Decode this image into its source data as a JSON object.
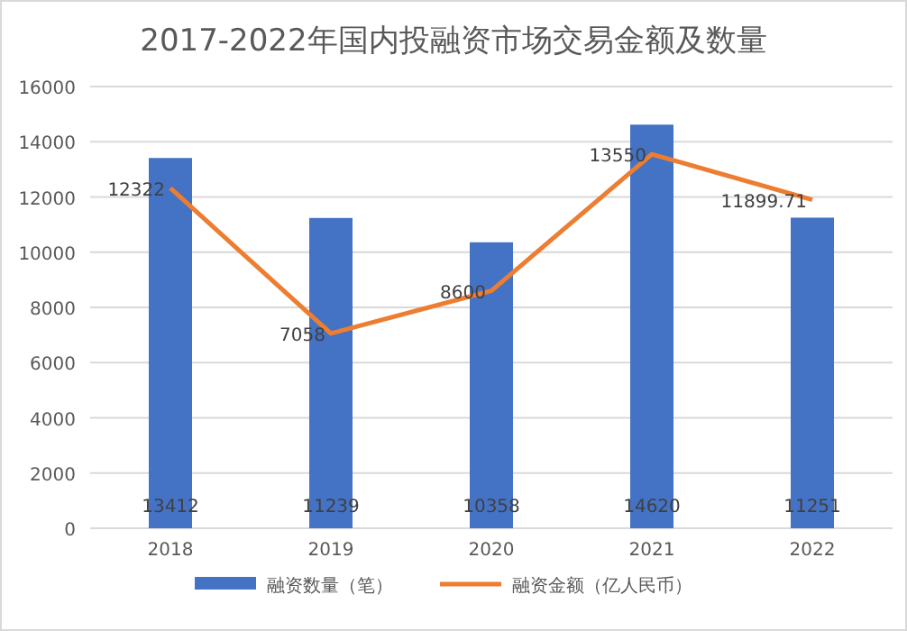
{
  "chart_data": {
    "type": "bar",
    "title": "2017-2022年国内投融资市场交易金额及数量",
    "categories": [
      "2018",
      "2019",
      "2020",
      "2021",
      "2022"
    ],
    "series": [
      {
        "name": "融资数量（笔）",
        "color": "#4472c4",
        "values": [
          13412,
          11239,
          10358,
          14620,
          11251
        ]
      },
      {
        "name": "融资金额（亿人民币）",
        "type": "line",
        "color": "#ed7d31",
        "values": [
          12322,
          7058,
          8600,
          13550,
          11899.71
        ]
      }
    ],
    "ylim": [
      0,
      16000
    ],
    "yticks": [
      0,
      2000,
      4000,
      6000,
      8000,
      10000,
      12000,
      14000,
      16000
    ],
    "grid": "y",
    "legend": "bottom",
    "data_labels": true,
    "marker": "none"
  }
}
